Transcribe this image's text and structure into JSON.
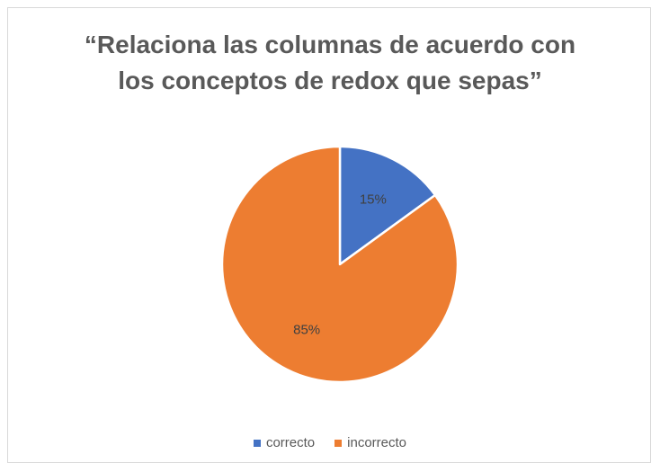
{
  "chart_data": {
    "type": "pie",
    "title_lines": [
      "“Relaciona las columnas de acuerdo con",
      "los conceptos de redox que sepas”"
    ],
    "slices": [
      {
        "label": "correcto",
        "value": 15,
        "data_label": "15%",
        "color": "#4472c4"
      },
      {
        "label": "incorrecto",
        "value": 85,
        "data_label": "85%",
        "color": "#ed7d31"
      }
    ],
    "legend_position": "bottom"
  }
}
